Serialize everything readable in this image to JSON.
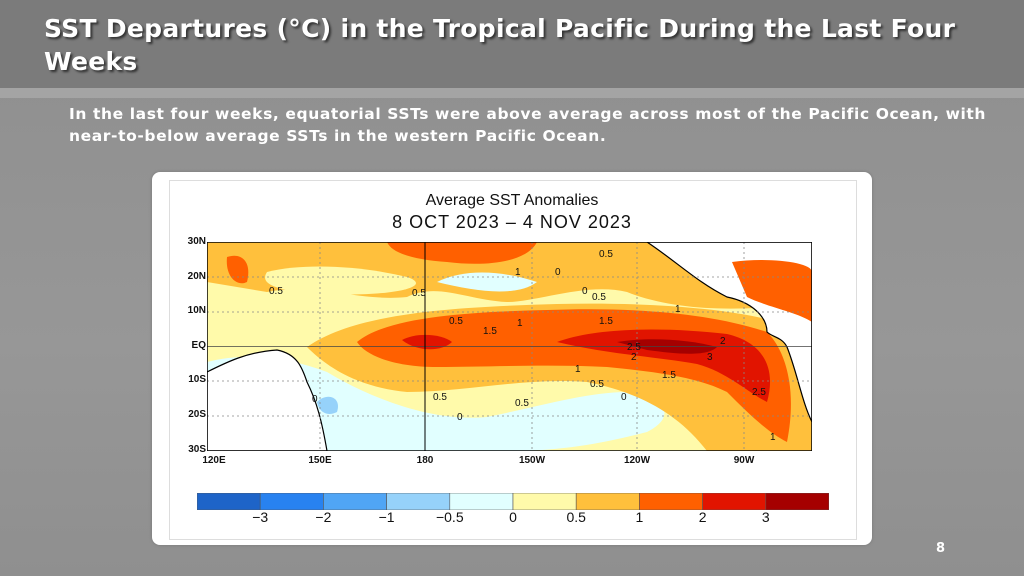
{
  "slide": {
    "title": "SST Departures (°C) in the Tropical Pacific During the Last Four Weeks",
    "subtitle": "In the last four weeks, equatorial SSTs were above average across most of the Pacific Ocean, with near-to-below average SSTs in the western Pacific Ocean.",
    "page_number": "8"
  },
  "map": {
    "title": "Average SST Anomalies",
    "date_range": "8 OCT 2023 – 4 NOV 2023",
    "lat_labels": [
      "30N",
      "20N",
      "10N",
      "EQ",
      "10S",
      "20S",
      "30S"
    ],
    "lon_labels": [
      "120E",
      "150E",
      "180",
      "150W",
      "120W",
      "90W"
    ],
    "contour_labels": [
      "0.5",
      "0.5",
      "0.5",
      "1",
      "0",
      "0.5",
      "0",
      "0.5",
      "1.5",
      "1",
      "1.5",
      "1",
      "2.5",
      "2",
      "2",
      "3",
      "1",
      "1.5",
      "0.5",
      "2.5",
      "0.5",
      "0.5",
      "0",
      "0",
      "1",
      "0"
    ],
    "colorbar": {
      "colors": [
        "#1e64c8",
        "#2882f0",
        "#50a5f5",
        "#96d2fa",
        "#e1ffff",
        "#fffaaa",
        "#ffc03c",
        "#ff6000",
        "#e11400",
        "#a50000"
      ],
      "labels": [
        "−3",
        "−2",
        "−1",
        "−0.5",
        "0",
        "0.5",
        "1",
        "2",
        "3"
      ]
    }
  }
}
